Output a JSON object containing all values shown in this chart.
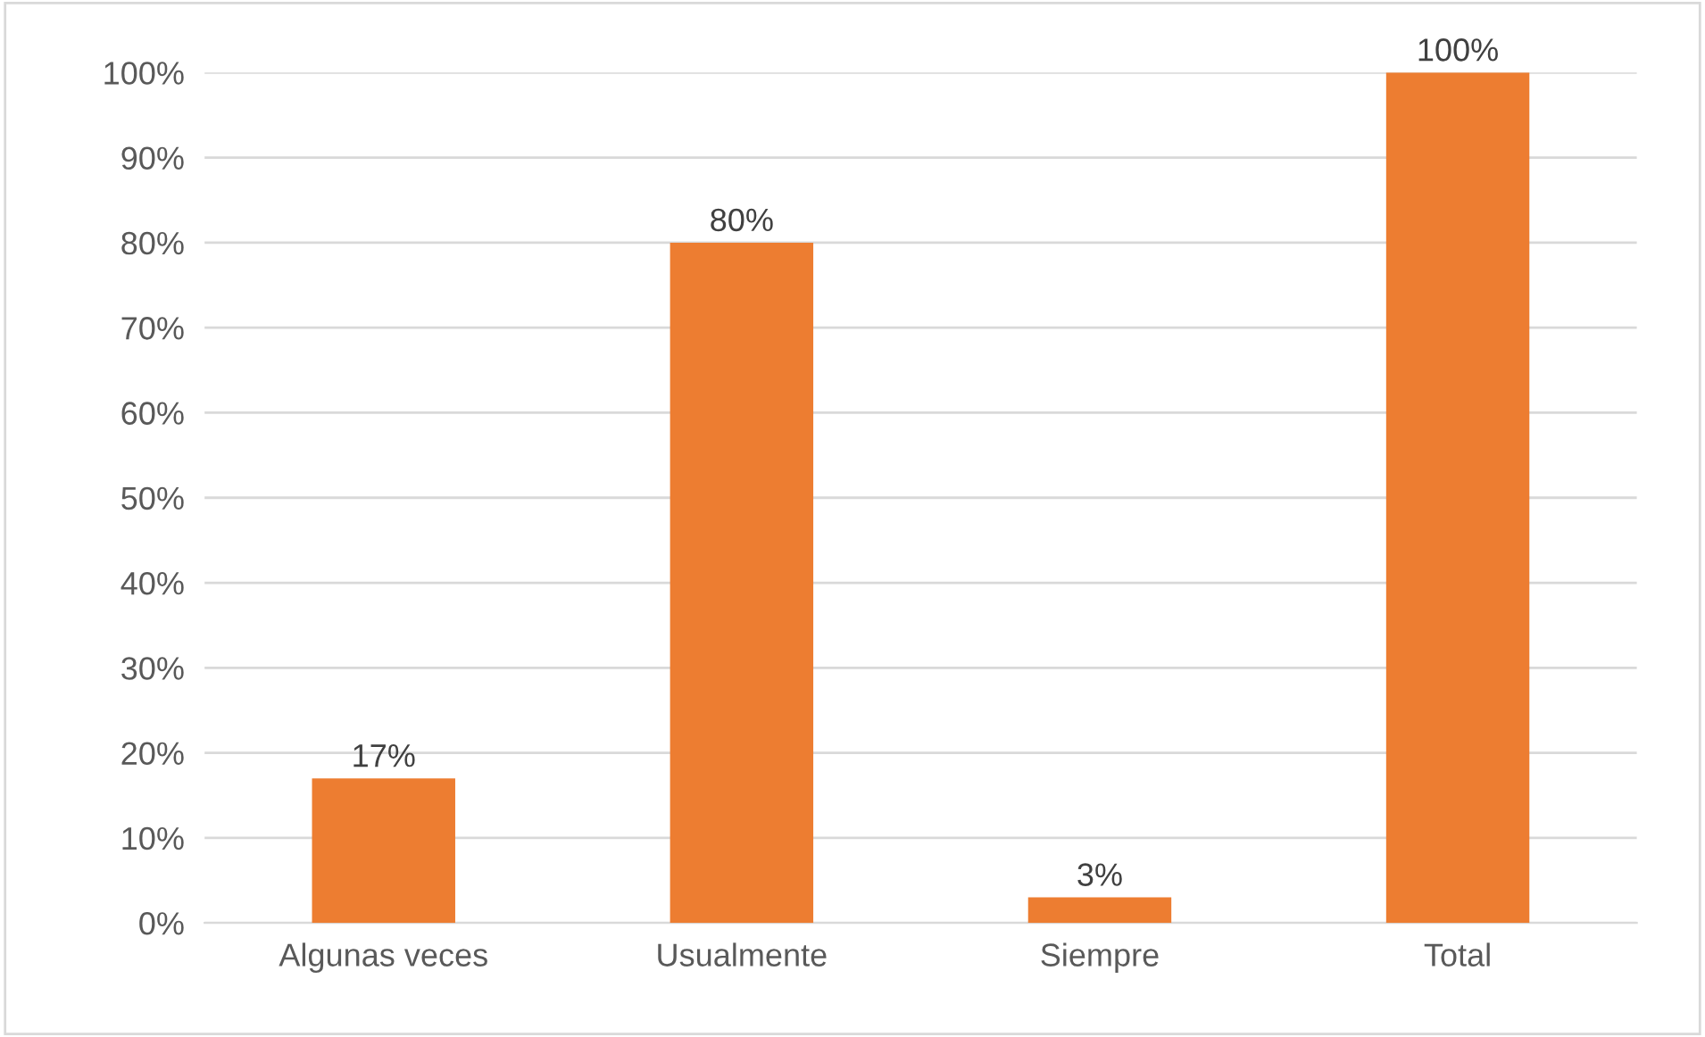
{
  "chart_data": {
    "type": "bar",
    "categories": [
      "Algunas veces",
      "Usualmente",
      "Siempre",
      "Total"
    ],
    "values": [
      17,
      80,
      3,
      100
    ],
    "value_labels": [
      "17%",
      "80%",
      "3%",
      "100%"
    ],
    "color": "#ed7d31",
    "ylim": [
      0,
      100
    ],
    "yticks": [
      {
        "value": 0,
        "label": "0%"
      },
      {
        "value": 10,
        "label": "10%"
      },
      {
        "value": 20,
        "label": "20%"
      },
      {
        "value": 30,
        "label": "30%"
      },
      {
        "value": 40,
        "label": "40%"
      },
      {
        "value": 50,
        "label": "50%"
      },
      {
        "value": 60,
        "label": "60%"
      },
      {
        "value": 70,
        "label": "70%"
      },
      {
        "value": 80,
        "label": "80%"
      },
      {
        "value": 90,
        "label": "90%"
      },
      {
        "value": 100,
        "label": "100%"
      }
    ],
    "grid": "y",
    "legend": false
  }
}
